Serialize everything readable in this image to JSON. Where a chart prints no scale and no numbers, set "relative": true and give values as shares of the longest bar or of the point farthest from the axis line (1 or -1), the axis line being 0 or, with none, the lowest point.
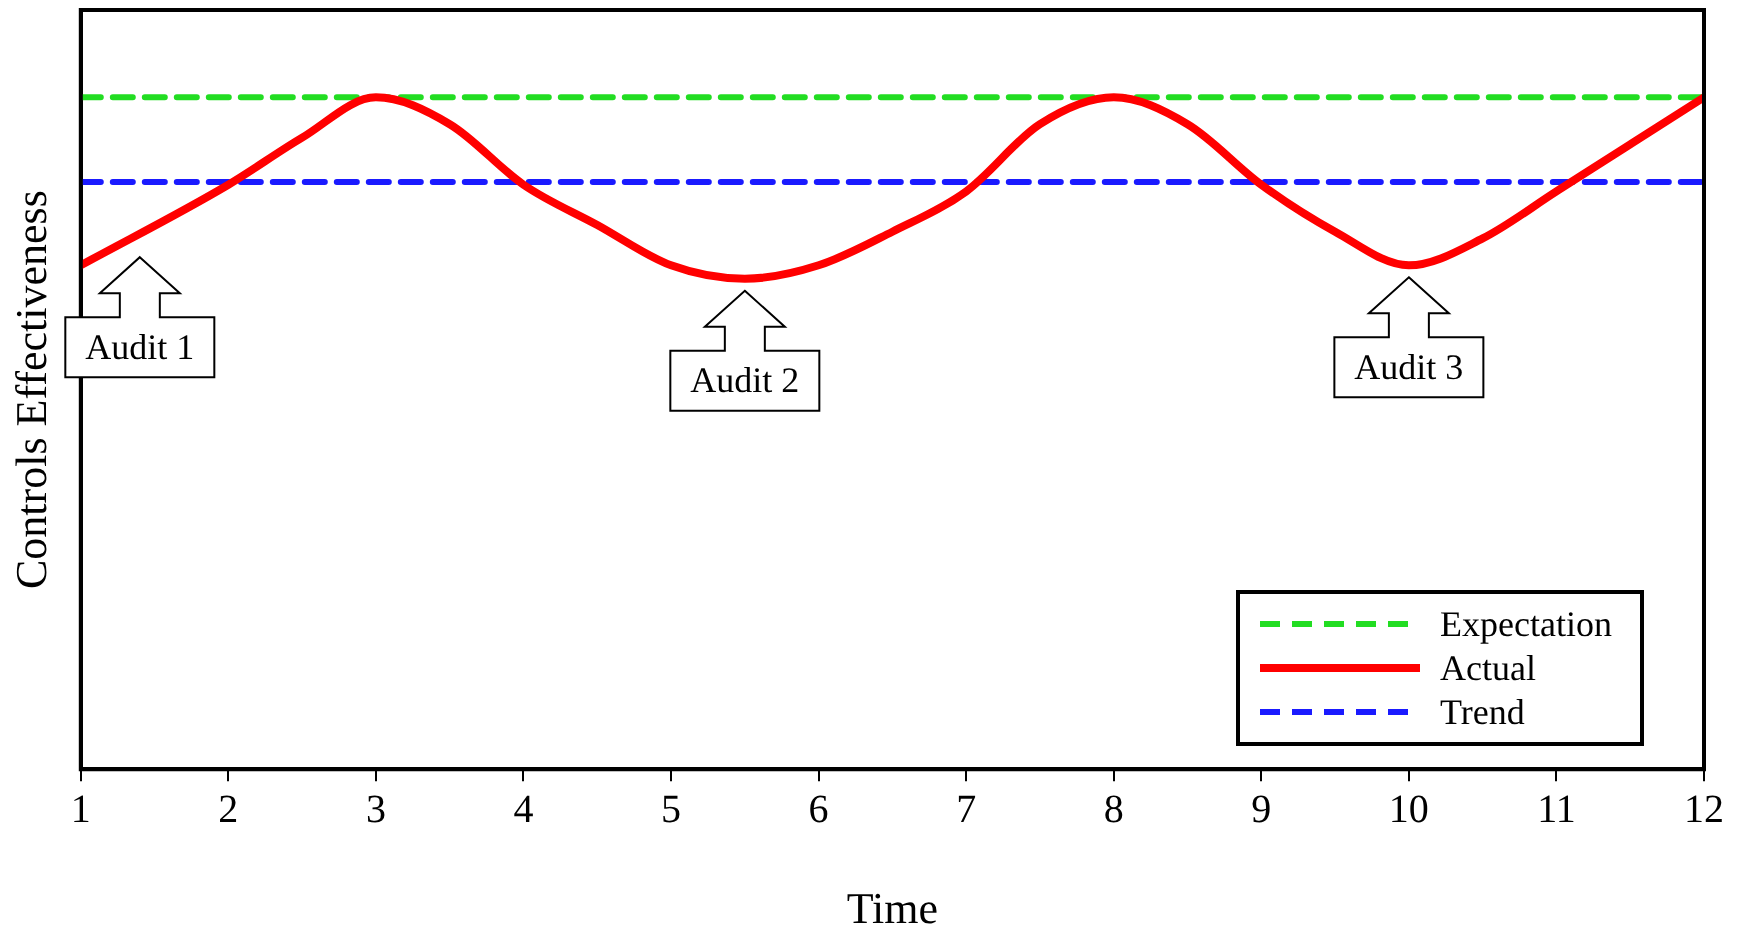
{
  "chart_data": {
    "type": "line",
    "relative": true,
    "xlabel": "Time",
    "ylabel": "Controls Effectiveness",
    "xlim": [
      1,
      12
    ],
    "xticks": [
      1,
      2,
      3,
      4,
      5,
      6,
      7,
      8,
      9,
      10,
      11,
      12
    ],
    "tick_labels": "x",
    "grid": false,
    "legend": "bottom right",
    "marker": "none",
    "series": [
      {
        "name": "Expectation",
        "color": "#22dd22",
        "line_style": "dashed",
        "x": [
          1,
          12
        ],
        "values": [
          1.0,
          1.0
        ]
      },
      {
        "name": "Actual",
        "color": "#ff0000",
        "line_style": "solid",
        "x": [
          1,
          2,
          2.5,
          3,
          3.5,
          4,
          4.5,
          5,
          5.5,
          6,
          6.5,
          7,
          7.5,
          8,
          8.5,
          9,
          9.5,
          10,
          10.5,
          11,
          11.5,
          12
        ],
        "values": [
          0.75,
          0.87,
          0.94,
          1.0,
          0.96,
          0.87,
          0.81,
          0.75,
          0.73,
          0.75,
          0.8,
          0.86,
          0.96,
          1.0,
          0.96,
          0.87,
          0.8,
          0.75,
          0.79,
          0.86,
          0.93,
          1.0
        ]
      },
      {
        "name": "Trend",
        "color": "#1a1aff",
        "line_style": "dashed",
        "x": [
          1,
          12
        ],
        "values": [
          0.874,
          0.874
        ]
      }
    ],
    "annotations": [
      {
        "text": "Audit 1",
        "x": 1.4,
        "y": 0.78
      },
      {
        "text": "Audit 2",
        "x": 5.5,
        "y": 0.73
      },
      {
        "text": "Audit 3",
        "x": 10,
        "y": 0.75
      }
    ]
  }
}
